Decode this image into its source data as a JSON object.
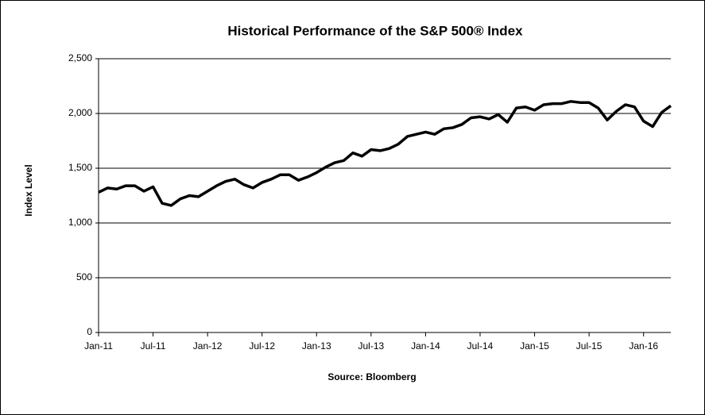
{
  "chart_data": {
    "type": "line",
    "title": "Historical Performance of the S&P 500® Index",
    "y_label": "Index Level",
    "source": "Source: Bloomberg",
    "x": [
      "Jan-11",
      "Feb-11",
      "Mar-11",
      "Apr-11",
      "May-11",
      "Jun-11",
      "Jul-11",
      "Aug-11",
      "Sep-11",
      "Oct-11",
      "Nov-11",
      "Dec-11",
      "Jan-12",
      "Feb-12",
      "Mar-12",
      "Apr-12",
      "May-12",
      "Jun-12",
      "Jul-12",
      "Aug-12",
      "Sep-12",
      "Oct-12",
      "Nov-12",
      "Dec-12",
      "Jan-13",
      "Feb-13",
      "Mar-13",
      "Apr-13",
      "May-13",
      "Jun-13",
      "Jul-13",
      "Aug-13",
      "Sep-13",
      "Oct-13",
      "Nov-13",
      "Dec-13",
      "Jan-14",
      "Feb-14",
      "Mar-14",
      "Apr-14",
      "May-14",
      "Jun-14",
      "Jul-14",
      "Aug-14",
      "Sep-14",
      "Oct-14",
      "Nov-14",
      "Dec-14",
      "Jan-15",
      "Feb-15",
      "Mar-15",
      "Apr-15",
      "May-15",
      "Jun-15",
      "Jul-15",
      "Aug-15",
      "Sep-15",
      "Oct-15",
      "Nov-15",
      "Dec-15",
      "Jan-16",
      "Feb-16",
      "Mar-16",
      "Apr-16"
    ],
    "series": [
      {
        "name": "S&P 500",
        "color": "#000000",
        "values": [
          1280,
          1320,
          1310,
          1340,
          1340,
          1290,
          1330,
          1180,
          1160,
          1220,
          1250,
          1240,
          1290,
          1340,
          1380,
          1400,
          1350,
          1320,
          1370,
          1400,
          1440,
          1440,
          1390,
          1420,
          1460,
          1510,
          1550,
          1570,
          1640,
          1610,
          1670,
          1660,
          1680,
          1720,
          1790,
          1810,
          1830,
          1810,
          1860,
          1870,
          1900,
          1960,
          1970,
          1950,
          1990,
          1920,
          2050,
          2060,
          2030,
          2080,
          2090,
          2090,
          2110,
          2100,
          2100,
          2050,
          1940,
          2020,
          2080,
          2060,
          1930,
          1880,
          2010,
          2070
        ]
      }
    ],
    "xticks": [
      "Jan-11",
      "Jul-11",
      "Jan-12",
      "Jul-12",
      "Jan-13",
      "Jul-13",
      "Jan-14",
      "Jul-14",
      "Jan-15",
      "Jul-15",
      "Jan-16"
    ],
    "ylim": [
      0,
      2500
    ],
    "yticks": [
      0,
      500,
      {
        "value": 1000,
        "label": "1,000"
      },
      {
        "value": 1500,
        "label": "1,500"
      },
      {
        "value": 2000,
        "label": "2,000"
      },
      {
        "value": 2500,
        "label": "2,500"
      }
    ],
    "grid": true
  }
}
